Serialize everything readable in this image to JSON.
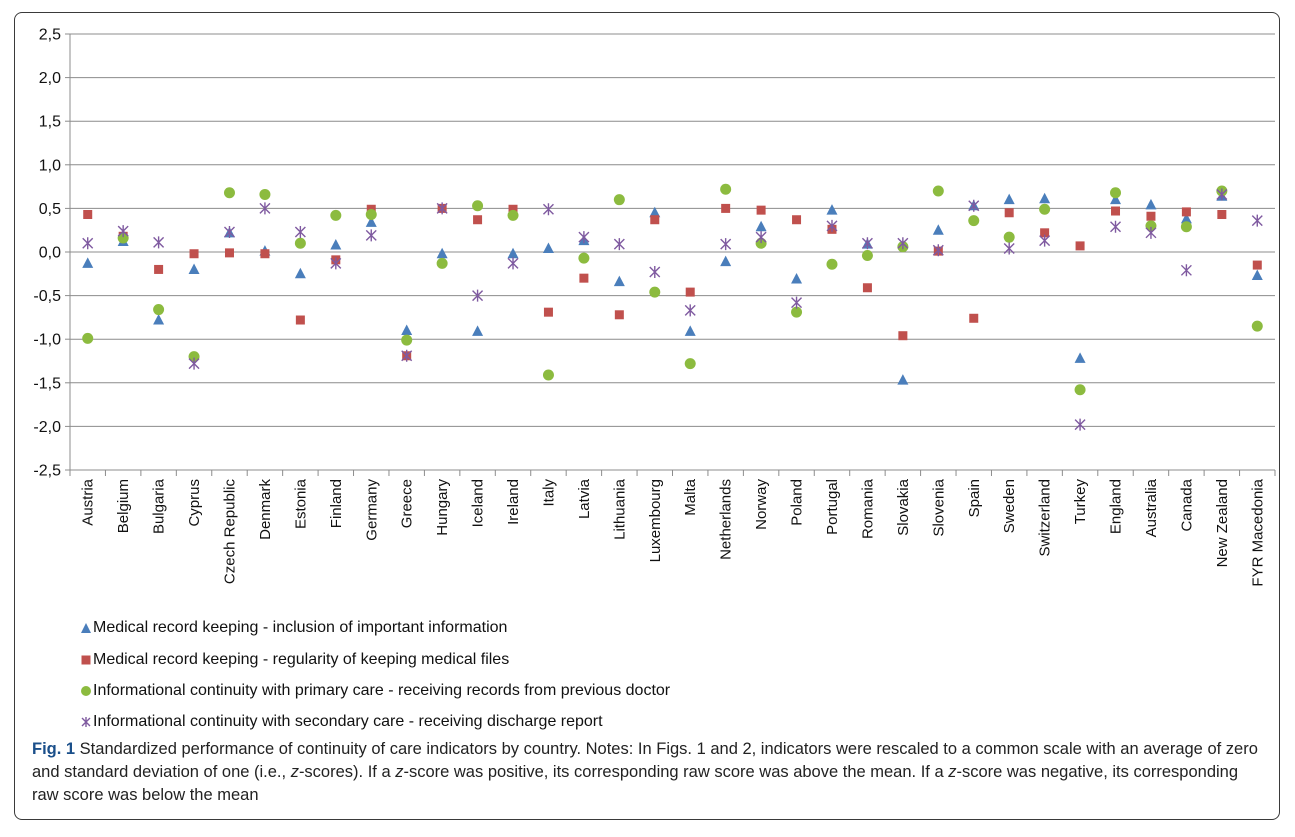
{
  "chart_data": {
    "type": "scatter",
    "categories": [
      "Austria",
      "Belgium",
      "Bulgaria",
      "Cyprus",
      "Czech Republic",
      "Denmark",
      "Estonia",
      "Finland",
      "Germany",
      "Greece",
      "Hungary",
      "Iceland",
      "Ireland",
      "Italy",
      "Latvia",
      "Lithuania",
      "Luxembourg",
      "Malta",
      "Netherlands",
      "Norway",
      "Poland",
      "Portugal",
      "Romania",
      "Slovakia",
      "Slovenia",
      "Spain",
      "Sweden",
      "Switzerland",
      "Turkey",
      "England",
      "Australia",
      "Canada",
      "New Zealand",
      "FYR Macedonia"
    ],
    "ylim": [
      -2.5,
      2.5
    ],
    "yticks": [
      "2,5",
      "2,0",
      "1,5",
      "1,0",
      "0,5",
      "0,0",
      "-0,5",
      "-1,0",
      "-1,5",
      "-2,0",
      "-2,5"
    ],
    "ytick_values": [
      2.5,
      2.0,
      1.5,
      1.0,
      0.5,
      0.0,
      -0.5,
      -1.0,
      -1.5,
      -2.0,
      -2.5
    ],
    "grid": true,
    "legend_position": "bottom-left",
    "series": [
      {
        "name": "Medical record keeping - inclusion of important information",
        "marker": "triangle",
        "color": "#4a7ebb",
        "values": [
          -0.13,
          0.12,
          -0.78,
          -0.2,
          0.22,
          0.01,
          -0.25,
          0.08,
          0.34,
          -0.9,
          -0.02,
          -0.91,
          -0.02,
          0.04,
          0.13,
          -0.34,
          0.45,
          -0.91,
          -0.11,
          0.29,
          -0.31,
          0.48,
          0.09,
          -1.47,
          0.25,
          0.53,
          0.6,
          0.61,
          -1.22,
          0.6,
          0.54,
          0.38,
          0.64,
          -0.27
        ]
      },
      {
        "name": "Medical record keeping - regularity of keeping medical files",
        "marker": "square",
        "color": "#c0504d",
        "values": [
          0.43,
          0.18,
          -0.2,
          -0.02,
          -0.01,
          -0.02,
          -0.78,
          -0.09,
          0.49,
          -1.19,
          0.5,
          0.37,
          0.49,
          -0.69,
          -0.3,
          -0.72,
          0.37,
          -0.46,
          0.5,
          0.48,
          0.37,
          0.26,
          -0.41,
          -0.96,
          0.01,
          -0.76,
          0.45,
          0.22,
          0.07,
          0.47,
          0.41,
          0.46,
          0.43,
          -0.15
        ]
      },
      {
        "name": "Informational continuity with primary care - receiving records from previous doctor",
        "marker": "circle",
        "color": "#8cbb3f",
        "values": [
          -0.99,
          0.16,
          -0.66,
          -1.2,
          0.68,
          0.66,
          0.1,
          0.42,
          0.43,
          -1.01,
          -0.13,
          0.53,
          0.42,
          -1.41,
          -0.07,
          0.6,
          -0.46,
          -1.28,
          0.72,
          0.1,
          -0.69,
          -0.14,
          -0.04,
          0.06,
          0.7,
          0.36,
          0.17,
          0.49,
          -1.58,
          0.68,
          0.3,
          0.29,
          0.7,
          -0.85
        ]
      },
      {
        "name": "Informational continuity with secondary care - receiving discharge report",
        "marker": "x",
        "color": "#7f5aa0",
        "values": [
          0.1,
          0.24,
          0.11,
          -1.28,
          0.23,
          0.5,
          0.23,
          -0.13,
          0.19,
          -1.19,
          0.5,
          -0.5,
          -0.13,
          0.49,
          0.17,
          0.09,
          -0.23,
          -0.67,
          0.09,
          0.17,
          -0.58,
          0.3,
          0.1,
          0.1,
          0.02,
          0.53,
          0.04,
          0.13,
          -1.98,
          0.29,
          0.22,
          -0.21,
          0.66,
          0.36
        ]
      }
    ]
  },
  "caption": {
    "label": "Fig. 1",
    "part1": " Standardized performance of continuity of care indicators by country. Notes: In Figs. 1 and 2, indicators were rescaled to a common scale with an average of zero and standard deviation of one (i.e., ",
    "z1": "z",
    "part2": "-scores). If a ",
    "z2": "z",
    "part3": "-score was positive, its corresponding raw score was above the mean. If a ",
    "z3": "z",
    "part4": "-score was negative, its corresponding raw score was below the mean"
  }
}
